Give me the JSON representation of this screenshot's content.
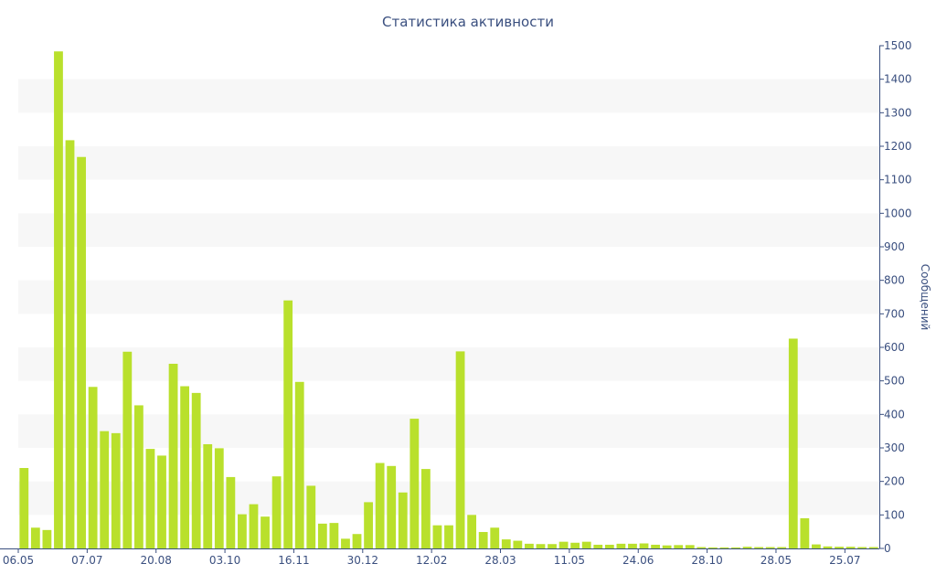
{
  "chart_data": {
    "type": "bar",
    "title": "Статистика активности",
    "ylabel": "Сообщений",
    "xlabel": "",
    "ylim": [
      0,
      1500
    ],
    "yticks": [
      0,
      100,
      200,
      300,
      400,
      500,
      600,
      700,
      800,
      900,
      1000,
      1100,
      1200,
      1300,
      1400,
      1500
    ],
    "y_axis_side": "right",
    "grid": "alternating horizontal bands",
    "xtick_labels": [
      {
        "index": 0,
        "label": "06.05"
      },
      {
        "index": 6,
        "label": "07.07"
      },
      {
        "index": 12,
        "label": "20.08"
      },
      {
        "index": 18,
        "label": "03.10"
      },
      {
        "index": 24,
        "label": "16.11"
      },
      {
        "index": 30,
        "label": "30.12"
      },
      {
        "index": 36,
        "label": "12.02"
      },
      {
        "index": 42,
        "label": "28.03"
      },
      {
        "index": 48,
        "label": "11.05"
      },
      {
        "index": 54,
        "label": "24.06"
      },
      {
        "index": 60,
        "label": "28.10"
      },
      {
        "index": 66,
        "label": "28.05"
      },
      {
        "index": 72,
        "label": "25.07"
      }
    ],
    "values": [
      240,
      62,
      55,
      1483,
      1218,
      1168,
      482,
      350,
      344,
      587,
      427,
      297,
      277,
      551,
      484,
      464,
      311,
      299,
      213,
      102,
      132,
      95,
      215,
      740,
      497,
      187,
      74,
      76,
      29,
      43,
      138,
      255,
      246,
      167,
      387,
      237,
      69,
      69,
      588,
      100,
      49,
      62,
      27,
      23,
      14,
      13,
      13,
      20,
      17,
      20,
      11,
      11,
      14,
      14,
      15,
      11,
      9,
      10,
      10,
      4,
      3,
      3,
      3,
      5,
      4,
      4,
      4,
      626,
      90,
      12,
      6,
      5,
      5,
      4,
      4
    ],
    "colors": {
      "bar": "#b9e02c",
      "axis": "#3a4f7f",
      "band": "#f7f7f7"
    }
  }
}
